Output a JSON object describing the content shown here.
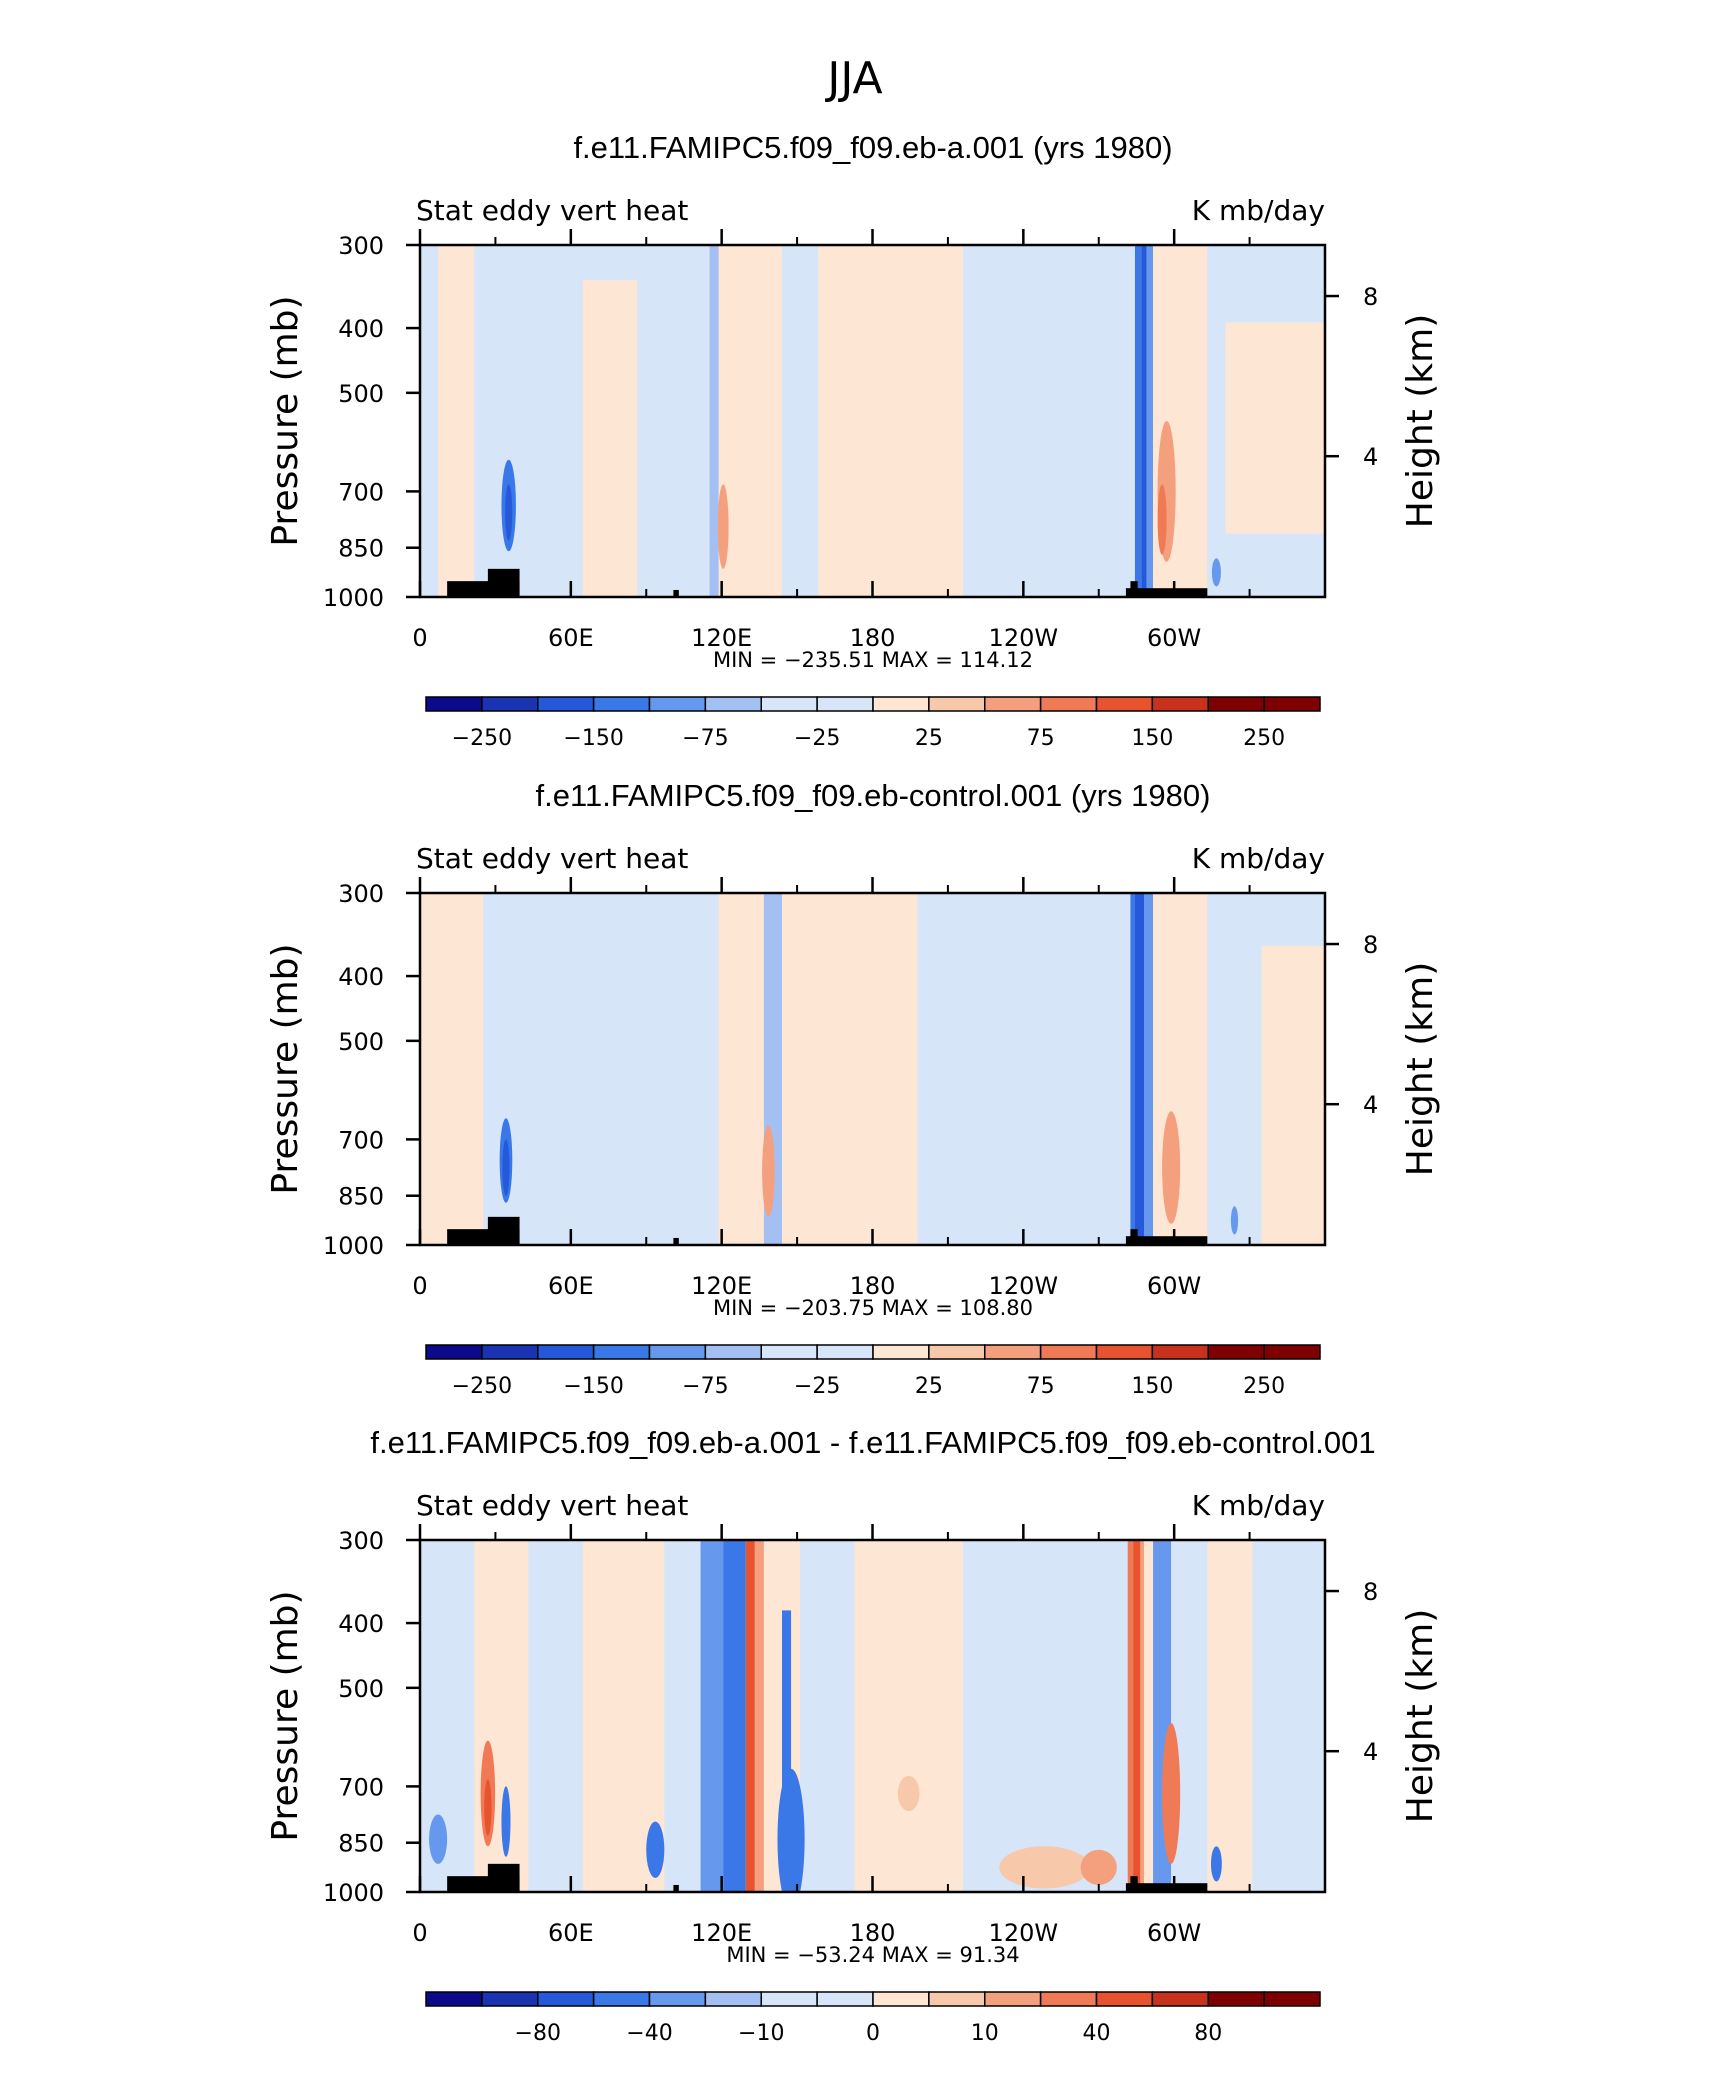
{
  "figure": {
    "title": "JJA"
  },
  "colors": {
    "palette_18": [
      "#0a0a8a",
      "#1a33b3",
      "#2659d9",
      "#3a78e8",
      "#6699ee",
      "#a4c0f3",
      "#d6e6f8",
      "#fde6d4",
      "#f8c8aa",
      "#f4a07e",
      "#f07a55",
      "#e8532f",
      "#c8321c",
      "#7f0000"
    ],
    "terrain": "#000000"
  },
  "chart_data": [
    {
      "type": "heatmap",
      "title": "f.e11.FAMIPC5.f09_f09.eb-a.001 (yrs 1980)",
      "left_label": "Stat eddy vert heat",
      "right_label": "K mb/day",
      "ylabel": "Pressure (mb)",
      "ylabel_right": "Height (km)",
      "x_ticks": [
        "0",
        "60E",
        "120E",
        "180",
        "120W",
        "60W"
      ],
      "y_ticks": [
        "300",
        "400",
        "500",
        "700",
        "850",
        "1000"
      ],
      "y2_ticks": [
        "8",
        "4"
      ],
      "stats": "MIN = −235.51   MAX = 114.12",
      "colorbar_labels": [
        "−250",
        "−150",
        "−75",
        "−25",
        "25",
        "75",
        "150",
        "250"
      ]
    },
    {
      "type": "heatmap",
      "title": "f.e11.FAMIPC5.f09_f09.eb-control.001 (yrs 1980)",
      "left_label": "Stat eddy vert heat",
      "right_label": "K mb/day",
      "ylabel": "Pressure (mb)",
      "ylabel_right": "Height (km)",
      "x_ticks": [
        "0",
        "60E",
        "120E",
        "180",
        "120W",
        "60W"
      ],
      "y_ticks": [
        "300",
        "400",
        "500",
        "700",
        "850",
        "1000"
      ],
      "y2_ticks": [
        "8",
        "4"
      ],
      "stats": "MIN = −203.75   MAX = 108.80",
      "colorbar_labels": [
        "−250",
        "−150",
        "−75",
        "−25",
        "25",
        "75",
        "150",
        "250"
      ]
    },
    {
      "type": "heatmap",
      "title": "f.e11.FAMIPC5.f09_f09.eb-a.001 - f.e11.FAMIPC5.f09_f09.eb-control.001",
      "left_label": "Stat eddy vert heat",
      "right_label": "K mb/day",
      "ylabel": "Pressure (mb)",
      "ylabel_right": "Height (km)",
      "x_ticks": [
        "0",
        "60E",
        "120E",
        "180",
        "120W",
        "60W"
      ],
      "y_ticks": [
        "300",
        "400",
        "500",
        "700",
        "850",
        "1000"
      ],
      "y2_ticks": [
        "8",
        "4"
      ],
      "stats": "MIN = −53.24   MAX =  91.34",
      "colorbar_labels": [
        "−80",
        "−40",
        "−10",
        "0",
        "10",
        "40",
        "80"
      ]
    }
  ]
}
